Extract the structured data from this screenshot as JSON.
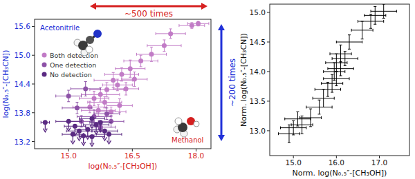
{
  "chart_data": [
    {
      "type": "scatter",
      "x_label": "log(N₀.₅″-[CH₃OH])",
      "y_label": "log(N₀.₅″-[CH₃CN])",
      "xlim": [
        14.2,
        18.35
      ],
      "ylim": [
        13.05,
        15.75
      ],
      "xticks": [
        {
          "value": 15,
          "label": "15.0"
        },
        16.5,
        {
          "value": 18,
          "label": "18.0"
        }
      ],
      "yticks": [
        13.2,
        13.8,
        14.4,
        {
          "value": 15,
          "label": "15.0"
        },
        15.6
      ],
      "legend": "upper left",
      "annotations": [
        "~500 times",
        "~200 times",
        "Acetonitrile",
        "Methanol"
      ],
      "series": [
        {
          "name": "Both detection",
          "color": "#c17bc6",
          "marker": "circle",
          "x": [
            17.9,
            18.05,
            17.4,
            17.25,
            16.95,
            16.7,
            16.45,
            16.55,
            16.25,
            16.05,
            16.15,
            15.9,
            16.35,
            15.75,
            15.85,
            15.6,
            15.5,
            16.2,
            16.0,
            15.7
          ],
          "values": [
            15.62,
            15.66,
            15.45,
            15.2,
            15.02,
            14.88,
            14.72,
            14.5,
            14.6,
            14.48,
            14.38,
            14.28,
            14.3,
            14.18,
            14.02,
            14.1,
            13.92,
            13.95,
            13.82,
            13.85
          ],
          "x_errors": [
            0.3,
            0.25,
            0.35,
            0.4,
            0.35,
            0.4,
            0.35,
            0.3,
            0.4,
            0.45,
            0.35,
            0.4,
            0.3,
            0.45,
            0.4,
            0.35,
            0.4,
            0.3,
            0.35,
            0.4
          ],
          "errors": [
            0.06,
            0.05,
            0.1,
            0.12,
            0.15,
            0.12,
            0.18,
            0.15,
            0.14,
            0.16,
            0.12,
            0.15,
            0.13,
            0.14,
            0.12,
            0.15,
            0.12,
            0.14,
            0.1,
            0.12
          ]
        },
        {
          "name": "One detection",
          "color": "#8d52a7",
          "marker": "circle",
          "x": [
            15.4,
            15.0,
            15.6,
            15.2,
            16.0,
            15.75,
            15.3,
            15.9
          ],
          "values": [
            14.3,
            14.15,
            13.72,
            13.9,
            13.62,
            13.5,
            13.62,
            13.78
          ],
          "x_errors": [
            0.35,
            0.3,
            0.4,
            0.35,
            0.3,
            0.35,
            0.3,
            0.3
          ],
          "errors": [
            0.15,
            0.12,
            0.14,
            0.12,
            0.12,
            0.1,
            0.12,
            0.12
          ]
        },
        {
          "name": "No detection",
          "color": "#5a2a82",
          "marker": "arrow",
          "x": [
            14.45,
            15.0,
            15.15,
            15.25,
            15.45,
            15.35,
            15.55,
            15.65,
            15.85,
            15.1,
            15.95,
            15.55,
            15.75
          ],
          "values": [
            13.6,
            13.62,
            13.52,
            13.42,
            13.45,
            13.32,
            13.3,
            13.55,
            13.42,
            13.35,
            13.35,
            13.68,
            13.6
          ],
          "x_errors": [
            0.1,
            0.3,
            0.25,
            0.3,
            0.3,
            0.25,
            0.3,
            0.3,
            0.3,
            0.25,
            0.3,
            0.3,
            0.25
          ]
        }
      ]
    },
    {
      "type": "scatter",
      "x_label": "Norm. log(N₀.₅″-[CH₃OH])",
      "y_label": "Norm. log(N₀.₅″-[CH₃CN])",
      "xlim": [
        14.45,
        17.7
      ],
      "ylim": [
        12.58,
        15.14
      ],
      "xticks": [
        {
          "value": 15,
          "label": "15.0"
        },
        {
          "value": 16,
          "label": "16.0"
        },
        {
          "value": 17,
          "label": "17.0"
        }
      ],
      "yticks": [
        {
          "value": 13,
          "label": "13.0"
        },
        13.5,
        {
          "value": 14,
          "label": "14.0"
        },
        14.5,
        {
          "value": 15,
          "label": "15.0"
        }
      ],
      "series": [
        {
          "color": "#000000",
          "marker": "none",
          "x": [
            14.9,
            15.0,
            15.2,
            15.1,
            15.4,
            15.6,
            15.7,
            15.8,
            15.9,
            16.0,
            15.95,
            16.1,
            16.0,
            16.2,
            16.1,
            16.3,
            16.6,
            16.8,
            16.9,
            17.1
          ],
          "values": [
            12.95,
            13.05,
            13.1,
            13.2,
            13.22,
            13.4,
            13.55,
            13.7,
            13.8,
            13.88,
            14.0,
            14.05,
            14.15,
            14.22,
            14.3,
            14.5,
            14.7,
            14.85,
            14.95,
            15.02
          ],
          "x_errors": [
            0.25,
            0.3,
            0.25,
            0.3,
            0.25,
            0.3,
            0.25,
            0.3,
            0.25,
            0.3,
            0.25,
            0.3,
            0.25,
            0.3,
            0.25,
            0.3,
            0.25,
            0.3,
            0.25,
            0.3
          ],
          "errors": [
            0.15,
            0.12,
            0.15,
            0.12,
            0.15,
            0.12,
            0.15,
            0.12,
            0.15,
            0.12,
            0.15,
            0.12,
            0.15,
            0.12,
            0.15,
            0.12,
            0.15,
            0.12,
            0.15,
            0.12
          ]
        }
      ]
    }
  ]
}
